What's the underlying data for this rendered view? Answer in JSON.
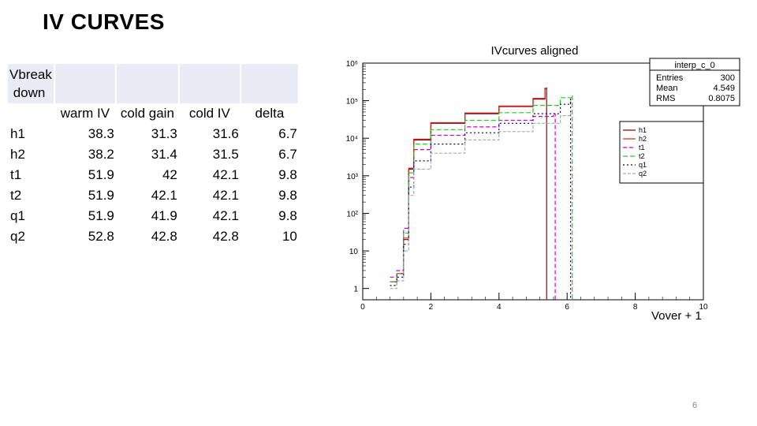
{
  "slide": {
    "title": "IV CURVES",
    "page_number": "6"
  },
  "table": {
    "corner": [
      "Vbreak",
      " down"
    ],
    "columns": [
      "warm IV",
      "cold gain",
      "cold IV",
      "delta"
    ],
    "rows": [
      {
        "label": "h1",
        "values": [
          "38.3",
          "31.3",
          "31.6",
          "6.7"
        ]
      },
      {
        "label": "h2",
        "values": [
          "38.2",
          "31.4",
          "31.5",
          "6.7"
        ]
      },
      {
        "label": "t1",
        "values": [
          "51.9",
          "42",
          "42.1",
          "9.8"
        ]
      },
      {
        "label": "t2",
        "values": [
          "51.9",
          "42.1",
          "42.1",
          "9.8"
        ]
      },
      {
        "label": "q1",
        "values": [
          "51.9",
          "41.9",
          "42.1",
          "9.8"
        ]
      },
      {
        "label": "q2",
        "values": [
          "52.8",
          "42.8",
          "42.8",
          "10"
        ]
      }
    ]
  },
  "chart_data": {
    "type": "line",
    "title": "IVcurves aligned",
    "xlabel": "Vover + 1",
    "ylabel": "",
    "xlim": [
      0,
      10
    ],
    "ylim": [
      0.5,
      1000000
    ],
    "log_y": true,
    "grid": false,
    "legend_placement": "right",
    "x_ticks": [
      "0",
      "2",
      "4",
      "6",
      "8",
      "10"
    ],
    "y_ticks": [
      {
        "value": 1,
        "label": "1"
      },
      {
        "value": 10,
        "label": "10"
      },
      {
        "value": 100,
        "label": "10²"
      },
      {
        "value": 1000,
        "label": "10³"
      },
      {
        "value": 10000,
        "label": "10⁴"
      },
      {
        "value": 100000,
        "label": "10⁵"
      },
      {
        "value": 1000000,
        "label": "10⁶"
      }
    ],
    "stats_box": {
      "title": "interp_c_0",
      "rows": [
        {
          "label": "Entries",
          "value": "300"
        },
        {
          "label": "Mean",
          "value": "4.549"
        },
        {
          "label": "RMS",
          "value": "0.8075"
        }
      ]
    },
    "series": [
      {
        "name": "h1",
        "color": "#7a0000",
        "dash": "",
        "x": [
          0.8,
          1.0,
          1.2,
          1.35,
          1.5,
          2.0,
          3.0,
          4.0,
          5.0,
          5.35,
          5.4,
          5.401
        ],
        "y": [
          1.5,
          2.5,
          20,
          1500,
          9000,
          25000,
          45000,
          70000,
          110000,
          210000,
          220000,
          0.5
        ]
      },
      {
        "name": "h2",
        "color": "#cc2222",
        "dash": "",
        "x": [
          0.8,
          1.0,
          1.2,
          1.35,
          1.5,
          2.0,
          3.0,
          4.0,
          5.0,
          5.35,
          5.4,
          5.401
        ],
        "y": [
          1.5,
          2.5,
          22,
          1600,
          9500,
          26000,
          47000,
          72000,
          115000,
          215000,
          225000,
          0.5
        ]
      },
      {
        "name": "t1",
        "color": "#cc00cc",
        "dash": "5,3",
        "x": [
          0.8,
          1.0,
          1.2,
          1.35,
          1.5,
          2.0,
          3.0,
          4.0,
          5.0,
          5.6,
          5.65,
          5.651
        ],
        "y": [
          2,
          3,
          40,
          900,
          5000,
          12000,
          20000,
          30000,
          38000,
          45000,
          46000,
          0.5
        ]
      },
      {
        "name": "t2",
        "color": "#22cc22",
        "dash": "6,3",
        "x": [
          0.8,
          1.0,
          1.2,
          1.35,
          1.5,
          2.0,
          3.0,
          4.0,
          5.0,
          5.8,
          6.15,
          6.151
        ],
        "y": [
          1.5,
          2.5,
          30,
          1200,
          7000,
          17000,
          30000,
          48000,
          75000,
          120000,
          140000,
          0.5
        ]
      },
      {
        "name": "q1",
        "color": "#000066",
        "dash": "2,3",
        "x": [
          0.8,
          1.0,
          1.2,
          1.35,
          1.5,
          2.0,
          3.0,
          4.0,
          5.0,
          5.8,
          6.1,
          6.101
        ],
        "y": [
          1.2,
          2,
          15,
          500,
          2500,
          7000,
          14000,
          25000,
          45000,
          80000,
          110000,
          0.5
        ]
      },
      {
        "name": "q2",
        "color": "#aaaaaa",
        "dash": "4,2",
        "x": [
          0.8,
          1.0,
          1.2,
          1.35,
          1.5,
          2.0,
          3.0,
          4.0,
          5.0,
          5.8,
          6.1
        ],
        "y": [
          1.0,
          1.6,
          10,
          300,
          1500,
          4000,
          9000,
          15000,
          25000,
          40000,
          50000
        ]
      }
    ]
  }
}
